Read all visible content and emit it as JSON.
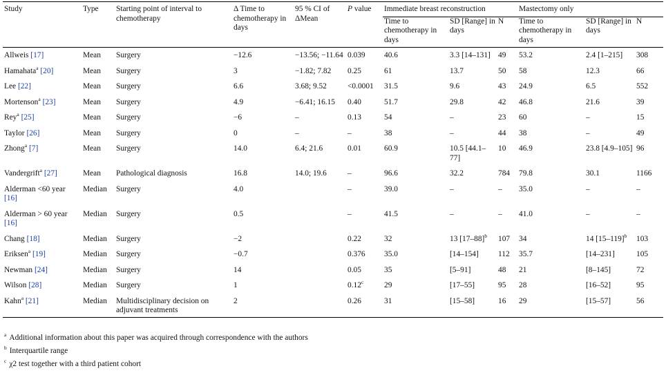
{
  "headers": {
    "study": "Study",
    "type": "Type",
    "start": "Starting point of interval to chemotherapy",
    "delta_prefix": "Δ Time to chemotherapy in days",
    "ci": "95 % CI of ΔMean",
    "p_italic": "P",
    "p_rest": " value",
    "ibr_group": "Immediate breast reconstruction",
    "mast_group": "Mastectomy only",
    "ibr_time": "Time to chemotherapy in days",
    "ibr_sd": "SD [Range] in days",
    "ibr_n": "N",
    "mast_time": "Time to chemotherapy in days",
    "mast_sd": "SD [Range] in days",
    "mast_n": "N"
  },
  "rows": [
    {
      "study": "Allweis",
      "sup": "",
      "ref": "[17]",
      "type": "Mean",
      "start": "Surgery",
      "delta": "−12.6",
      "ci": "−13.56; −11.64",
      "p": "0.039",
      "p_sup": "",
      "ibr_time": "40.6",
      "ibr_sd": "3.3 [14–131]",
      "ibr_sd_sup": "",
      "ibr_n": "49",
      "mast_time": "53.2",
      "mast_sd": "2.4 [1–215]",
      "mast_sd_sup": "",
      "mast_n": "308"
    },
    {
      "study": "Hamahata",
      "sup": "a",
      "ref": "[20]",
      "type": "Mean",
      "start": "Surgery",
      "delta": "3",
      "ci": "−1.82; 7.82",
      "p": "0.25",
      "p_sup": "",
      "ibr_time": "61",
      "ibr_sd": "13.7",
      "ibr_sd_sup": "",
      "ibr_n": "50",
      "mast_time": "58",
      "mast_sd": "12.3",
      "mast_sd_sup": "",
      "mast_n": "66"
    },
    {
      "study": "Lee",
      "sup": "",
      "ref": "[22]",
      "type": "Mean",
      "start": "Surgery",
      "delta": "6.6",
      "ci": "3.68; 9.52",
      "p": "<0.0001",
      "p_sup": "",
      "ibr_time": "31.5",
      "ibr_sd": "9.6",
      "ibr_sd_sup": "",
      "ibr_n": "43",
      "mast_time": "24.9",
      "mast_sd": "6.5",
      "mast_sd_sup": "",
      "mast_n": "552"
    },
    {
      "study": "Mortenson",
      "sup": "a",
      "ref": "[23]",
      "type": "Mean",
      "start": "Surgery",
      "delta": "4.9",
      "ci": "−6.41; 16.15",
      "p": "0.40",
      "p_sup": "",
      "ibr_time": "51.7",
      "ibr_sd": "29.8",
      "ibr_sd_sup": "",
      "ibr_n": "42",
      "mast_time": "46.8",
      "mast_sd": "21.6",
      "mast_sd_sup": "",
      "mast_n": "39"
    },
    {
      "study": "Rey",
      "sup": "a",
      "ref": "[25]",
      "type": "Mean",
      "start": "Surgery",
      "delta": "−6",
      "ci": "–",
      "p": "0.13",
      "p_sup": "",
      "ibr_time": "54",
      "ibr_sd": "–",
      "ibr_sd_sup": "",
      "ibr_n": "23",
      "mast_time": "60",
      "mast_sd": "–",
      "mast_sd_sup": "",
      "mast_n": "15"
    },
    {
      "study": "Taylor",
      "sup": "",
      "ref": "[26]",
      "type": "Mean",
      "start": "Surgery",
      "delta": "0",
      "ci": "–",
      "p": "–",
      "p_sup": "",
      "ibr_time": "38",
      "ibr_sd": "–",
      "ibr_sd_sup": "",
      "ibr_n": "44",
      "mast_time": "38",
      "mast_sd": "–",
      "mast_sd_sup": "",
      "mast_n": "49"
    },
    {
      "study": "Zhong",
      "sup": "a",
      "ref": "[7]",
      "type": "Mean",
      "start": "Surgery",
      "delta": "14.0",
      "ci": "6.4; 21.6",
      "p": "0.01",
      "p_sup": "",
      "ibr_time": "60.9",
      "ibr_sd": "10.5 [44.1–77]",
      "ibr_sd_sup": "",
      "ibr_n": "10",
      "mast_time": "46.9",
      "mast_sd": "23.8 [4.9–105]",
      "mast_sd_sup": "",
      "mast_n": "96"
    },
    {
      "study": "Vandergrift",
      "sup": "a",
      "ref": "[27]",
      "type": "Mean",
      "start": "Pathological diagnosis",
      "delta": "16.8",
      "ci": "14.0; 19.6",
      "p": "–",
      "p_sup": "",
      "ibr_time": "96.6",
      "ibr_sd": "32.2",
      "ibr_sd_sup": "",
      "ibr_n": "784",
      "mast_time": "79.8",
      "mast_sd": "30.1",
      "mast_sd_sup": "",
      "mast_n": "1166"
    },
    {
      "study": "Alderman <60 year",
      "sup": "",
      "ref": "[16]",
      "type": "Median",
      "start": "Surgery",
      "delta": "4.0",
      "ci": "",
      "p": "–",
      "p_sup": "",
      "ibr_time": "39.0",
      "ibr_sd": "–",
      "ibr_sd_sup": "",
      "ibr_n": "–",
      "mast_time": "35.0",
      "mast_sd": "–",
      "mast_sd_sup": "",
      "mast_n": "–"
    },
    {
      "study": "Alderman > 60 year",
      "sup": "",
      "ref": "[16]",
      "type": "Median",
      "start": "Surgery",
      "delta": "0.5",
      "ci": "",
      "p": "–",
      "p_sup": "",
      "ibr_time": "41.5",
      "ibr_sd": "–",
      "ibr_sd_sup": "",
      "ibr_n": "–",
      "mast_time": "41.0",
      "mast_sd": "–",
      "mast_sd_sup": "",
      "mast_n": "–"
    },
    {
      "study": "Chang",
      "sup": "",
      "ref": "[18]",
      "type": "Median",
      "start": "Surgery",
      "delta": "−2",
      "ci": "",
      "p": "0.22",
      "p_sup": "",
      "ibr_time": "32",
      "ibr_sd": "13 [17–88]",
      "ibr_sd_sup": "b",
      "ibr_n": "107",
      "mast_time": "34",
      "mast_sd": "14 [15–119]",
      "mast_sd_sup": "b",
      "mast_n": "103"
    },
    {
      "study": "Eriksen",
      "sup": "a",
      "ref": "[19]",
      "type": "Median",
      "start": "Surgery",
      "delta": "−0.7",
      "ci": "",
      "p": "0.376",
      "p_sup": "",
      "ibr_time": "35.0",
      "ibr_sd": "[14–154]",
      "ibr_sd_sup": "",
      "ibr_n": "112",
      "mast_time": "35.7",
      "mast_sd": "[14–231]",
      "mast_sd_sup": "",
      "mast_n": "105"
    },
    {
      "study": "Newman",
      "sup": "",
      "ref": "[24]",
      "type": "Median",
      "start": "Surgery",
      "delta": "14",
      "ci": "",
      "p": "0.05",
      "p_sup": "",
      "ibr_time": "35",
      "ibr_sd": "[5–91]",
      "ibr_sd_sup": "",
      "ibr_n": "48",
      "mast_time": "21",
      "mast_sd": "[8–145]",
      "mast_sd_sup": "",
      "mast_n": "72"
    },
    {
      "study": "Wilson",
      "sup": "",
      "ref": "[28]",
      "type": "Median",
      "start": "Surgery",
      "delta": "1",
      "ci": "",
      "p": "0.12",
      "p_sup": "c",
      "ibr_time": "29",
      "ibr_sd": "[17–55]",
      "ibr_sd_sup": "",
      "ibr_n": "95",
      "mast_time": "28",
      "mast_sd": "[16–52]",
      "mast_sd_sup": "",
      "mast_n": "95"
    },
    {
      "study": "Kahn",
      "sup": "a",
      "ref": "[21]",
      "type": "Median",
      "start": "Multidisciplinary decision on adjuvant treatments",
      "delta": "2",
      "ci": "",
      "p": "0.26",
      "p_sup": "",
      "ibr_time": "31",
      "ibr_sd": "[15–58]",
      "ibr_sd_sup": "",
      "ibr_n": "16",
      "mast_time": "29",
      "mast_sd": "[15–57]",
      "mast_sd_sup": "",
      "mast_n": "56"
    }
  ],
  "footnotes": [
    {
      "mark": "a",
      "text": "Additional information about this paper was acquired through correspondence with the authors"
    },
    {
      "mark": "b",
      "text": "Interquartile range"
    },
    {
      "mark": "c",
      "text": "χ2 test together with a third patient cohort"
    }
  ]
}
